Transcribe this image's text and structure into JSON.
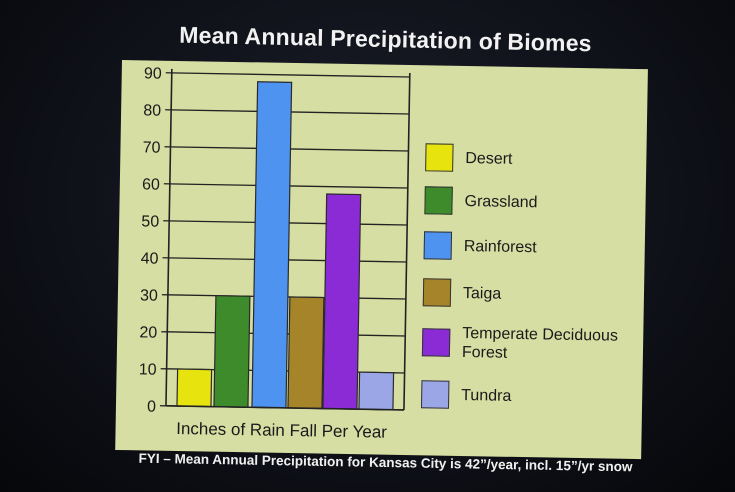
{
  "slide": {
    "title": "Mean Annual Precipitation of Biomes",
    "footer": "FYI – Mean Annual Precipitation for Kansas City is 42”/year, incl. 15”/yr snow"
  },
  "chart_data": {
    "type": "bar",
    "title": "Mean Annual Precipitation of Biomes",
    "xlabel": "Inches of Rain Fall Per Year",
    "ylabel": "",
    "ylim": [
      0,
      90
    ],
    "yticks": [
      "0",
      "10",
      "20",
      "30",
      "40",
      "50",
      "60",
      "70",
      "80",
      "90"
    ],
    "grid": true,
    "legend_position": "right",
    "categories": [
      "Desert",
      "Grassland",
      "Rainforest",
      "Taiga",
      "Temperate Deciduous Forest",
      "Tundra"
    ],
    "values": [
      10,
      30,
      88,
      30,
      58,
      10
    ],
    "colors": [
      "#e7e30f",
      "#3e8b2c",
      "#4e93f0",
      "#a6842a",
      "#8a2bd6",
      "#9aa6e6"
    ]
  }
}
